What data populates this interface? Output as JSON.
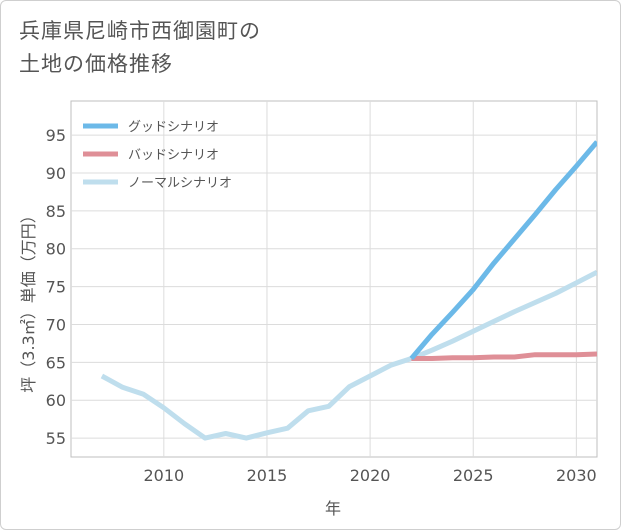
{
  "title_lines": [
    "兵庫県尼崎市西御園町の",
    "土地の価格推移"
  ],
  "chart_data": {
    "type": "line",
    "title": "兵庫県尼崎市西御園町の土地の価格推移",
    "xlabel": "年",
    "ylabel": "坪（3.3㎡）単価（万円）",
    "xlim": [
      2005.5,
      2031
    ],
    "ylim": [
      52.5,
      99.5
    ],
    "xticks": [
      2010,
      2015,
      2020,
      2025,
      2030
    ],
    "yticks": [
      55,
      60,
      65,
      70,
      75,
      80,
      85,
      90,
      95
    ],
    "grid": true,
    "legend_position": "top-left",
    "series": [
      {
        "name": "グッドシナリオ",
        "color": "#6cb9e8",
        "x": [
          2022,
          2023,
          2024,
          2025,
          2026,
          2027,
          2028,
          2029,
          2030,
          2031
        ],
        "y": [
          65.5,
          68.7,
          71.6,
          74.6,
          78.1,
          81.3,
          84.5,
          87.8,
          90.9,
          94.1
        ]
      },
      {
        "name": "バッドシナリオ",
        "color": "#df8f97",
        "x": [
          2022,
          2023,
          2024,
          2025,
          2026,
          2027,
          2028,
          2029,
          2030,
          2031
        ],
        "y": [
          65.5,
          65.5,
          65.6,
          65.6,
          65.7,
          65.7,
          66.0,
          66.0,
          66.0,
          66.1
        ]
      },
      {
        "name": "ノーマルシナリオ",
        "color": "#bfdeed",
        "x": [
          2007,
          2008,
          2009,
          2010,
          2011,
          2012,
          2013,
          2014,
          2015,
          2016,
          2017,
          2018,
          2019,
          2020,
          2021,
          2022,
          2023,
          2024,
          2025,
          2026,
          2027,
          2028,
          2029,
          2030,
          2031
        ],
        "y": [
          63.2,
          61.7,
          60.8,
          59.0,
          56.9,
          55.0,
          55.6,
          55.0,
          55.7,
          56.3,
          58.6,
          59.2,
          61.8,
          63.2,
          64.6,
          65.5,
          66.6,
          67.8,
          69.1,
          70.4,
          71.7,
          72.9,
          74.1,
          75.5,
          76.9
        ]
      }
    ]
  }
}
